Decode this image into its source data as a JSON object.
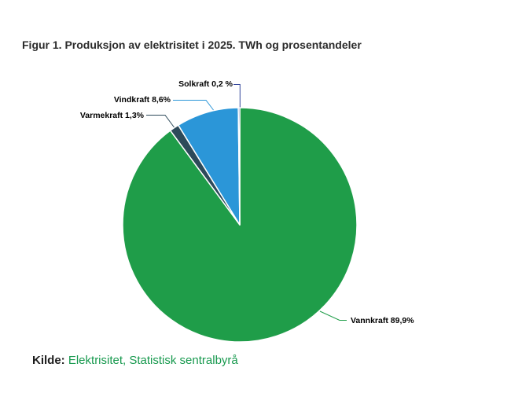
{
  "title": "Figur 1. Produksjon av elektrisitet i 2025. TWh og prosentandeler",
  "source": {
    "prefix": "Kilde:",
    "link_text": "Elektrisitet, Statistisk sentralbyrå"
  },
  "colors": {
    "background": "#ffffff",
    "title_text": "#2b2b2b",
    "label_text": "#000000",
    "source_link": "#17994e",
    "slice_border": "#ffffff"
  },
  "chart_data": {
    "type": "pie",
    "title": "Figur 1. Produksjon av elektrisitet i 2025. TWh og prosentandeler",
    "unit": "%",
    "start_angle_deg": 0,
    "direction": "clockwise",
    "legend": "none",
    "slices": [
      {
        "name": "Vannkraft",
        "value": 89.9,
        "label": "Vannkraft 89,9%",
        "color": "#1f9d49"
      },
      {
        "name": "Varmekraft",
        "value": 1.3,
        "label": "Varmekraft 1,3%",
        "color": "#2d4a5a"
      },
      {
        "name": "Vindkraft",
        "value": 8.6,
        "label": "Vindkraft 8,6%",
        "color": "#2b96d8"
      },
      {
        "name": "Solkraft",
        "value": 0.2,
        "label": "Solkraft 0,2 %",
        "color": "#35479c"
      }
    ]
  }
}
